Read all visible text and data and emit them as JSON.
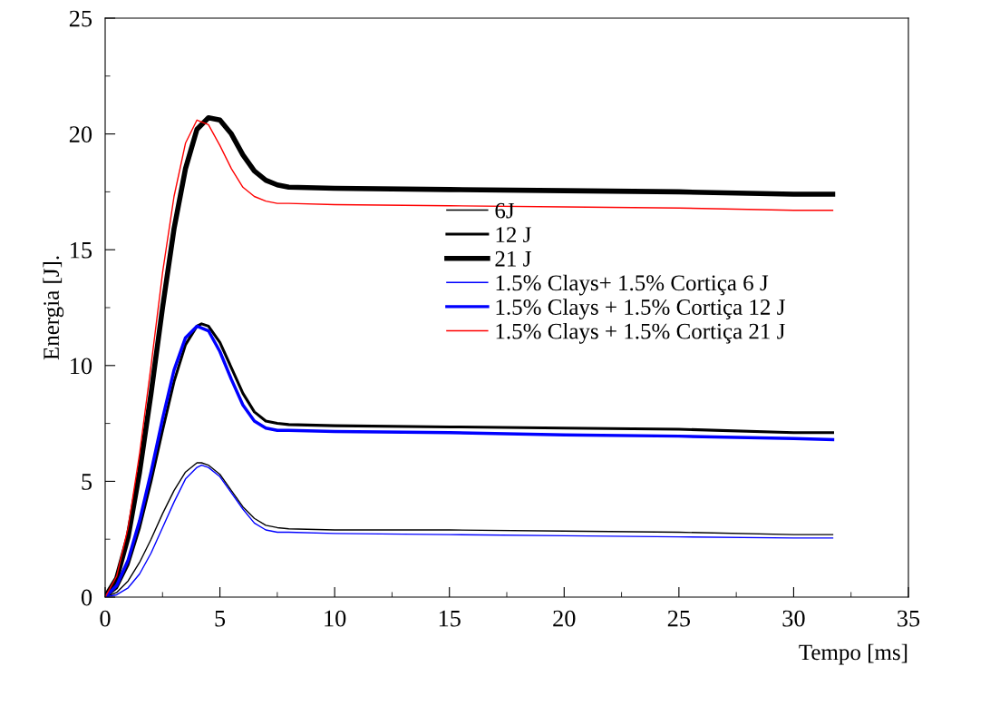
{
  "chart_data": {
    "type": "line",
    "xlabel": "Tempo [ms]",
    "ylabel": "Energia [J].",
    "xlim": [
      0,
      35
    ],
    "xticks": [
      0,
      5,
      10,
      15,
      20,
      25,
      30,
      35
    ],
    "ylim": [
      0,
      25
    ],
    "yticks": [
      0,
      5,
      10,
      15,
      20,
      25
    ],
    "grid": false,
    "legend": "right",
    "marker": "none",
    "line_style": "solid",
    "series": [
      {
        "name": "6J",
        "color": "#000000",
        "x": [
          0,
          0.5,
          1,
          1.5,
          2,
          2.5,
          3,
          3.5,
          4,
          4.2,
          4.5,
          5,
          5.5,
          6,
          6.5,
          7,
          7.5,
          8,
          10,
          15,
          20,
          25,
          30,
          31.7
        ],
        "values": [
          0,
          0.2,
          0.7,
          1.5,
          2.5,
          3.6,
          4.6,
          5.4,
          5.8,
          5.8,
          5.7,
          5.3,
          4.6,
          3.9,
          3.4,
          3.1,
          3.0,
          2.95,
          2.9,
          2.9,
          2.85,
          2.8,
          2.7,
          2.7
        ]
      },
      {
        "name": "12 J",
        "color": "#000000",
        "x": [
          0,
          0.5,
          1,
          1.5,
          2,
          2.5,
          3,
          3.5,
          4,
          4.2,
          4.5,
          5,
          5.5,
          6,
          6.5,
          7,
          7.5,
          8,
          10,
          15,
          20,
          25,
          30,
          31.7
        ],
        "values": [
          0,
          0.4,
          1.4,
          3.0,
          5.0,
          7.2,
          9.3,
          10.9,
          11.7,
          11.8,
          11.7,
          11.0,
          9.9,
          8.8,
          8.0,
          7.6,
          7.5,
          7.45,
          7.4,
          7.35,
          7.3,
          7.25,
          7.1,
          7.1
        ]
      },
      {
        "name": "21 J",
        "color": "#000000",
        "x": [
          0,
          0.5,
          1,
          1.5,
          2,
          2.5,
          3,
          3.5,
          4,
          4.5,
          5,
          5.5,
          6,
          6.5,
          7,
          7.5,
          8,
          10,
          15,
          20,
          25,
          30,
          31.7
        ],
        "values": [
          0,
          0.8,
          2.6,
          5.4,
          8.8,
          12.5,
          15.9,
          18.5,
          20.2,
          20.7,
          20.6,
          20.0,
          19.1,
          18.4,
          18.0,
          17.8,
          17.7,
          17.65,
          17.6,
          17.55,
          17.5,
          17.4,
          17.4
        ]
      },
      {
        "name": "1.5% Clays+ 1.5% Cortiça 6 J",
        "color": "#0000ff",
        "x": [
          0,
          0.5,
          1,
          1.5,
          2,
          2.5,
          3,
          3.5,
          4,
          4.2,
          4.5,
          5,
          5.5,
          6,
          6.5,
          7,
          7.5,
          8,
          10,
          15,
          20,
          25,
          30,
          31.7
        ],
        "values": [
          0,
          0.1,
          0.4,
          1.0,
          1.9,
          3.0,
          4.1,
          5.1,
          5.6,
          5.7,
          5.6,
          5.2,
          4.5,
          3.8,
          3.2,
          2.9,
          2.8,
          2.8,
          2.75,
          2.7,
          2.65,
          2.6,
          2.55,
          2.55
        ]
      },
      {
        "name": "1.5% Clays + 1.5% Cortiça 12 J",
        "color": "#0000ff",
        "x": [
          0,
          0.5,
          1,
          1.5,
          2,
          2.5,
          3,
          3.5,
          4,
          4.5,
          5,
          5.5,
          6,
          6.5,
          7,
          7.5,
          8,
          10,
          15,
          20,
          25,
          30,
          31.7
        ],
        "values": [
          0,
          0.5,
          1.6,
          3.3,
          5.4,
          7.7,
          9.8,
          11.2,
          11.7,
          11.5,
          10.6,
          9.4,
          8.3,
          7.6,
          7.3,
          7.2,
          7.2,
          7.15,
          7.1,
          7.0,
          6.95,
          6.85,
          6.8
        ]
      },
      {
        "name": "1.5% Clays + 1.5% Cortiça 21 J",
        "color": "#ff0000",
        "x": [
          0,
          0.5,
          1,
          1.5,
          2,
          2.5,
          3,
          3.5,
          4,
          4.5,
          5,
          5.5,
          6,
          6.5,
          7,
          7.5,
          8,
          10,
          15,
          20,
          25,
          30,
          31.7
        ],
        "values": [
          0,
          0.9,
          3.0,
          6.2,
          10.0,
          14.0,
          17.3,
          19.6,
          20.6,
          20.4,
          19.5,
          18.5,
          17.7,
          17.3,
          17.1,
          17.0,
          17.0,
          16.95,
          16.9,
          16.85,
          16.8,
          16.7,
          16.7
        ]
      }
    ]
  }
}
